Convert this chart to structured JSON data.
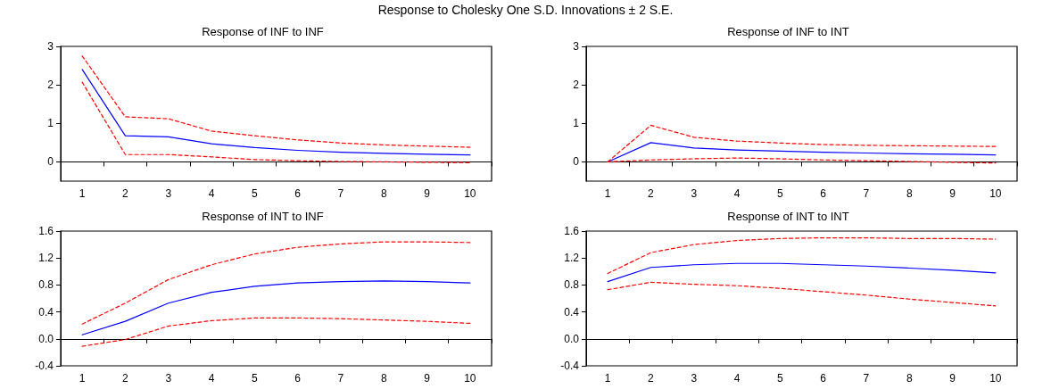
{
  "chart_data": [
    {
      "type": "line",
      "title": "Response of INF to INF",
      "annotations": [
        "Response to Cholesky One S.D. Innovations ± 2 S.E."
      ],
      "categories": [
        "1",
        "2",
        "3",
        "4",
        "5",
        "6",
        "7",
        "8",
        "9",
        "10"
      ],
      "ylim": [
        -0.5,
        3
      ],
      "yticks": [
        0,
        1,
        2,
        3
      ],
      "grid": false,
      "marker": "none",
      "ref_lines": [
        {
          "axis": "y",
          "value": 0,
          "color": "#000000"
        }
      ],
      "series": [
        {
          "color": "#0000ff",
          "line_style": "solid",
          "values": [
            2.4,
            0.68,
            0.65,
            0.47,
            0.37,
            0.3,
            0.25,
            0.22,
            0.2,
            0.18
          ]
        },
        {
          "color": "#ff0000",
          "line_style": "dashed",
          "values": [
            2.75,
            1.17,
            1.12,
            0.8,
            0.68,
            0.57,
            0.49,
            0.44,
            0.41,
            0.38
          ]
        },
        {
          "color": "#ff0000",
          "line_style": "dashed",
          "values": [
            2.07,
            0.19,
            0.19,
            0.13,
            0.06,
            0.03,
            0.01,
            0.0,
            -0.01,
            -0.02
          ]
        }
      ]
    },
    {
      "type": "line",
      "title": "Response of INF to INT",
      "categories": [
        "1",
        "2",
        "3",
        "4",
        "5",
        "6",
        "7",
        "8",
        "9",
        "10"
      ],
      "ylim": [
        -0.5,
        3
      ],
      "yticks": [
        0,
        1,
        2,
        3
      ],
      "grid": false,
      "marker": "none",
      "ref_lines": [
        {
          "axis": "y",
          "value": 0,
          "color": "#000000"
        }
      ],
      "series": [
        {
          "color": "#0000ff",
          "line_style": "solid",
          "values": [
            0,
            0.5,
            0.36,
            0.31,
            0.28,
            0.25,
            0.23,
            0.21,
            0.2,
            0.18
          ]
        },
        {
          "color": "#ff0000",
          "line_style": "dashed",
          "values": [
            0,
            0.95,
            0.64,
            0.54,
            0.49,
            0.45,
            0.43,
            0.42,
            0.41,
            0.4
          ]
        },
        {
          "color": "#ff0000",
          "line_style": "dashed",
          "values": [
            0,
            0.05,
            0.08,
            0.1,
            0.08,
            0.05,
            0.03,
            0.01,
            -0.01,
            -0.03
          ]
        }
      ]
    },
    {
      "type": "line",
      "title": "Response of INT to INF",
      "categories": [
        "1",
        "2",
        "3",
        "4",
        "5",
        "6",
        "7",
        "8",
        "9",
        "10"
      ],
      "ylim": [
        -0.4,
        1.6
      ],
      "yticks": [
        -0.4,
        {
          "value": 0,
          "label": "0.0"
        },
        0.4,
        0.8,
        1.2,
        1.6
      ],
      "grid": false,
      "marker": "none",
      "ref_lines": [
        {
          "axis": "y",
          "value": 0,
          "color": "#000000"
        }
      ],
      "series": [
        {
          "color": "#0000ff",
          "line_style": "solid",
          "values": [
            0.06,
            0.26,
            0.53,
            0.69,
            0.78,
            0.83,
            0.85,
            0.86,
            0.85,
            0.83
          ]
        },
        {
          "color": "#ff0000",
          "line_style": "dashed",
          "values": [
            0.22,
            0.53,
            0.88,
            1.1,
            1.26,
            1.36,
            1.41,
            1.44,
            1.44,
            1.43
          ]
        },
        {
          "color": "#ff0000",
          "line_style": "dashed",
          "values": [
            -0.11,
            -0.01,
            0.19,
            0.27,
            0.31,
            0.31,
            0.3,
            0.28,
            0.26,
            0.23
          ]
        }
      ]
    },
    {
      "type": "line",
      "title": "Response of INT to INT",
      "categories": [
        "1",
        "2",
        "3",
        "4",
        "5",
        "6",
        "7",
        "8",
        "9",
        "10"
      ],
      "ylim": [
        -0.4,
        1.6
      ],
      "yticks": [
        -0.4,
        {
          "value": 0,
          "label": "0.0"
        },
        0.4,
        0.8,
        1.2,
        1.6
      ],
      "grid": false,
      "marker": "none",
      "ref_lines": [
        {
          "axis": "y",
          "value": 0,
          "color": "#000000"
        }
      ],
      "series": [
        {
          "color": "#0000ff",
          "line_style": "solid",
          "values": [
            0.85,
            1.06,
            1.1,
            1.12,
            1.12,
            1.1,
            1.08,
            1.05,
            1.02,
            0.98
          ]
        },
        {
          "color": "#ff0000",
          "line_style": "dashed",
          "values": [
            0.97,
            1.28,
            1.4,
            1.46,
            1.49,
            1.5,
            1.5,
            1.49,
            1.49,
            1.48
          ]
        },
        {
          "color": "#ff0000",
          "line_style": "dashed",
          "values": [
            0.73,
            0.84,
            0.81,
            0.79,
            0.75,
            0.7,
            0.65,
            0.59,
            0.54,
            0.49
          ]
        }
      ]
    }
  ]
}
